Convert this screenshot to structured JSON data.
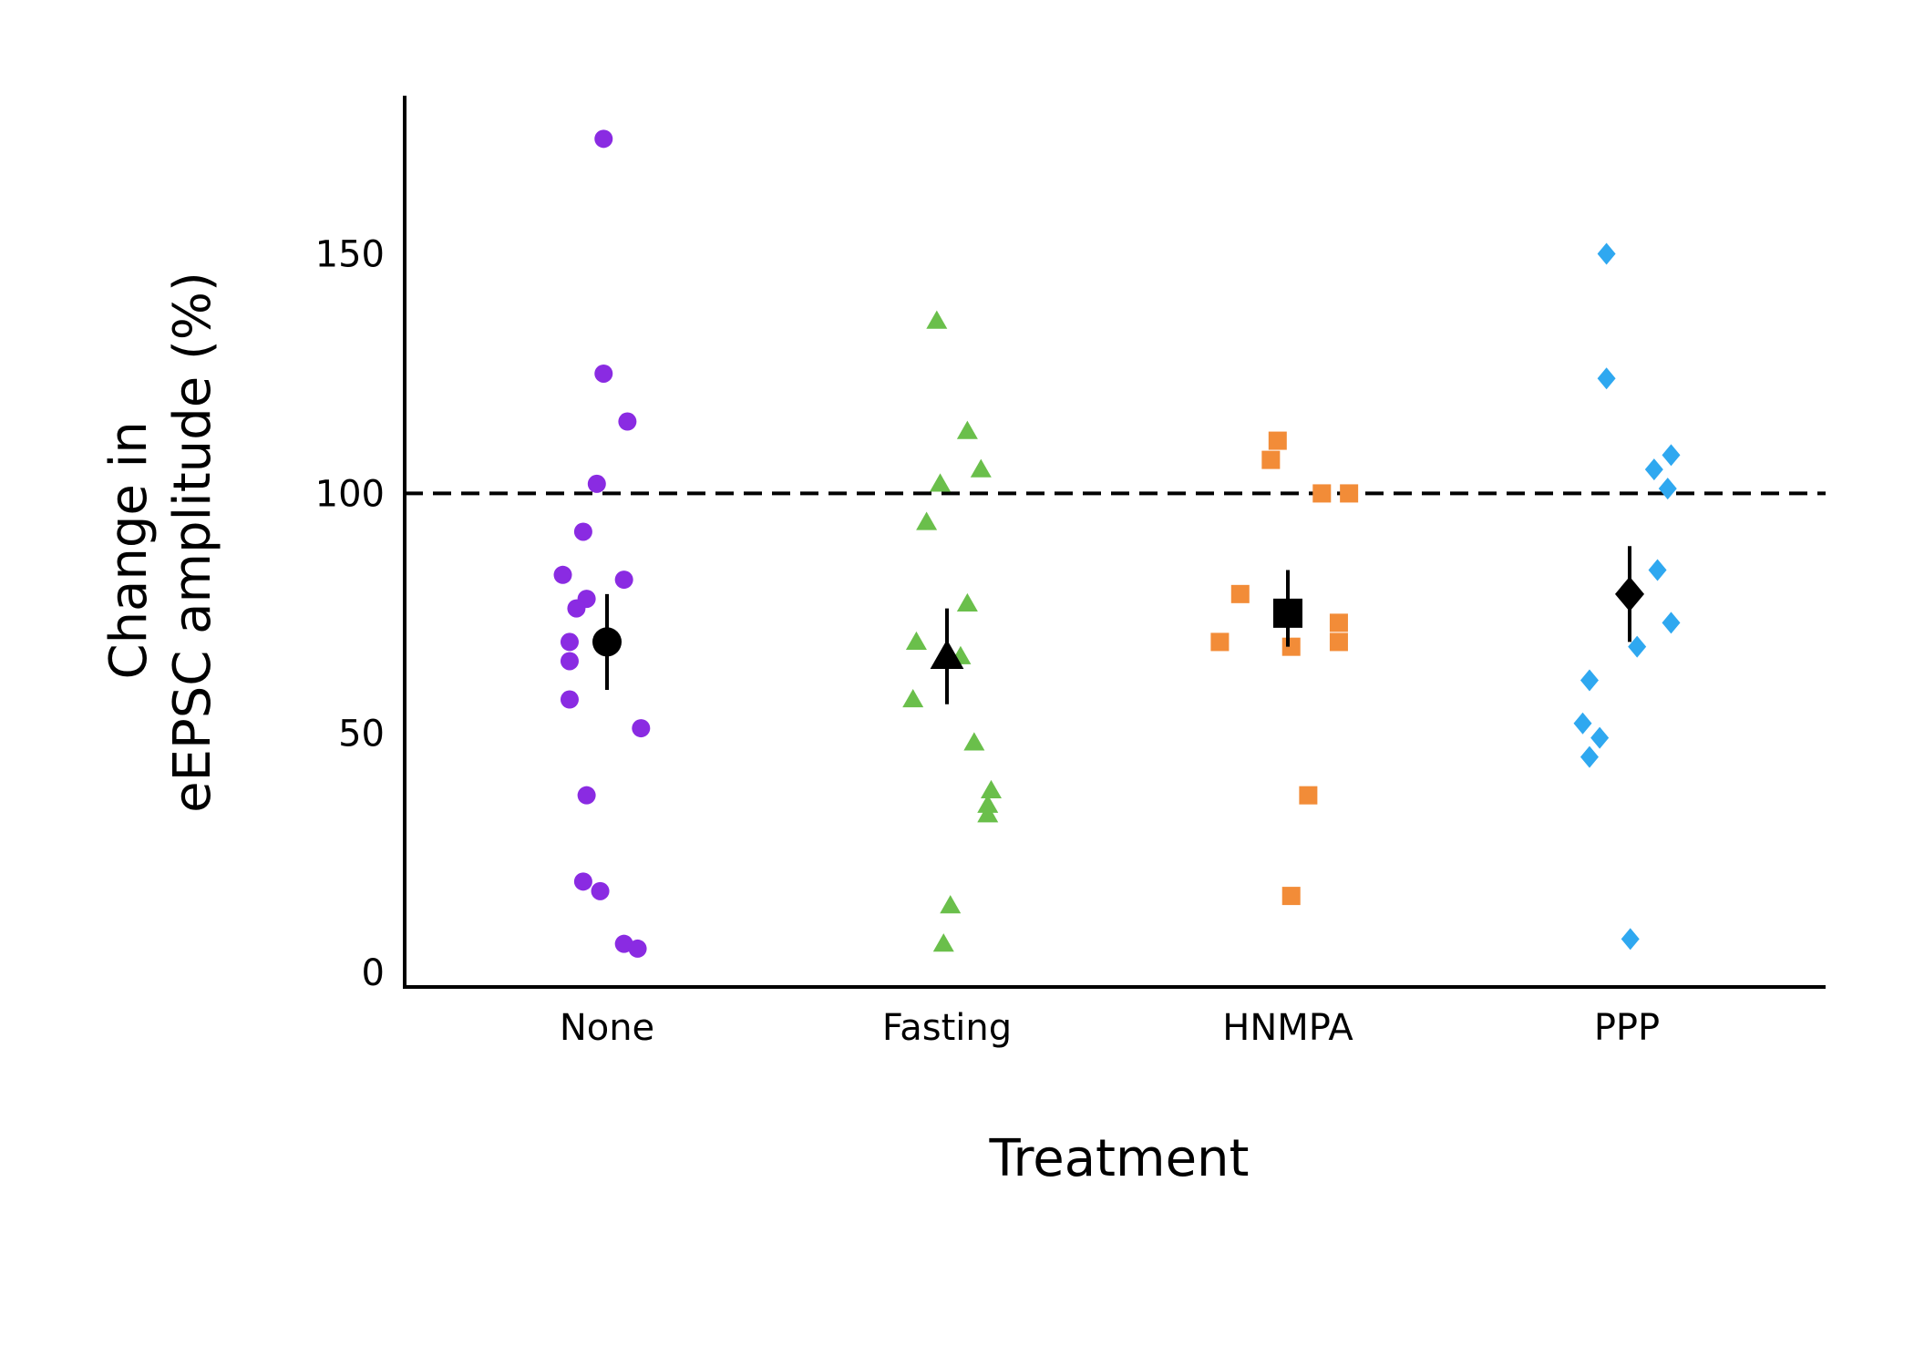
{
  "chart_data": {
    "type": "scatter",
    "title": "",
    "xlabel": "Treatment",
    "ylabel_lines": [
      "Change in",
      "eEPSC amplitude (%)"
    ],
    "ylim": [
      -3,
      183
    ],
    "yticks": [
      0,
      50,
      100,
      150
    ],
    "grid": false,
    "legend": "none",
    "reference_line": {
      "y": 100,
      "style": "dashed"
    },
    "categories": [
      "None",
      "Fasting",
      "HNMPA",
      "PPP"
    ],
    "series": [
      {
        "category": "None",
        "marker": "circle",
        "color": "#8a2be2",
        "points": [
          {
            "x": -0.01,
            "y": 174
          },
          {
            "x": -0.01,
            "y": 125
          },
          {
            "x": 0.06,
            "y": 115
          },
          {
            "x": -0.03,
            "y": 102
          },
          {
            "x": -0.07,
            "y": 92
          },
          {
            "x": -0.13,
            "y": 83
          },
          {
            "x": 0.05,
            "y": 82
          },
          {
            "x": -0.06,
            "y": 78
          },
          {
            "x": -0.09,
            "y": 76
          },
          {
            "x": -0.11,
            "y": 69
          },
          {
            "x": -0.11,
            "y": 65
          },
          {
            "x": -0.11,
            "y": 57
          },
          {
            "x": 0.1,
            "y": 51
          },
          {
            "x": -0.06,
            "y": 37
          },
          {
            "x": -0.07,
            "y": 19
          },
          {
            "x": -0.02,
            "y": 17
          },
          {
            "x": 0.05,
            "y": 6
          },
          {
            "x": 0.09,
            "y": 5
          }
        ],
        "mean": 69,
        "error": [
          59,
          79
        ]
      },
      {
        "category": "Fasting",
        "marker": "triangle",
        "color": "#6abf4b",
        "points": [
          {
            "x": -0.03,
            "y": 136
          },
          {
            "x": 0.06,
            "y": 113
          },
          {
            "x": 0.1,
            "y": 105
          },
          {
            "x": -0.02,
            "y": 102
          },
          {
            "x": -0.06,
            "y": 94
          },
          {
            "x": 0.06,
            "y": 77
          },
          {
            "x": -0.09,
            "y": 69
          },
          {
            "x": 0.04,
            "y": 66
          },
          {
            "x": -0.1,
            "y": 57
          },
          {
            "x": 0.08,
            "y": 48
          },
          {
            "x": 0.13,
            "y": 38
          },
          {
            "x": 0.12,
            "y": 35
          },
          {
            "x": 0.12,
            "y": 33
          },
          {
            "x": 0.01,
            "y": 14
          },
          {
            "x": -0.01,
            "y": 6
          }
        ],
        "mean": 66,
        "error": [
          56,
          76
        ]
      },
      {
        "category": "HNMPA",
        "marker": "square",
        "color": "#f28c38",
        "points": [
          {
            "x": -0.03,
            "y": 111
          },
          {
            "x": -0.05,
            "y": 107
          },
          {
            "x": 0.1,
            "y": 100
          },
          {
            "x": 0.18,
            "y": 100
          },
          {
            "x": -0.14,
            "y": 79
          },
          {
            "x": 0.15,
            "y": 73
          },
          {
            "x": -0.2,
            "y": 69
          },
          {
            "x": 0.01,
            "y": 68
          },
          {
            "x": 0.15,
            "y": 69
          },
          {
            "x": 0.06,
            "y": 37
          },
          {
            "x": 0.01,
            "y": 16
          }
        ],
        "mean": 75,
        "error": [
          68,
          84
        ]
      },
      {
        "category": "PPP",
        "marker": "diamond",
        "color": "#2fa8f0",
        "points": [
          {
            "x": -0.06,
            "y": 150
          },
          {
            "x": -0.06,
            "y": 124
          },
          {
            "x": 0.13,
            "y": 108
          },
          {
            "x": 0.08,
            "y": 105
          },
          {
            "x": 0.12,
            "y": 101
          },
          {
            "x": 0.09,
            "y": 84
          },
          {
            "x": 0.13,
            "y": 73
          },
          {
            "x": 0.03,
            "y": 68
          },
          {
            "x": -0.11,
            "y": 61
          },
          {
            "x": -0.13,
            "y": 52
          },
          {
            "x": -0.08,
            "y": 49
          },
          {
            "x": -0.11,
            "y": 45
          },
          {
            "x": 0.01,
            "y": 7
          }
        ],
        "mean": 79,
        "error": [
          69,
          89
        ]
      }
    ]
  }
}
